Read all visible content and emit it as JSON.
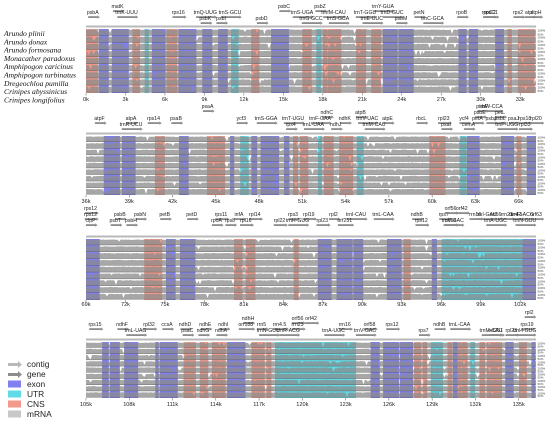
{
  "species": [
    "Arundo plinii",
    "Arundo donax",
    "Arundo formosana",
    "Monacather paradoxus",
    "Amphipogon caricinus",
    "Amphipogon turbinatus",
    "Dregeochloa pumilla",
    "Crinipes abyssinicus",
    "Crinipes longifolius"
  ],
  "legend": [
    {
      "label": "contig",
      "kind": "arrow",
      "color": "#b9b9b9"
    },
    {
      "label": "gene",
      "kind": "arrow",
      "color": "#8c8c8c"
    },
    {
      "label": "exon",
      "kind": "box",
      "color": "#8080ee"
    },
    {
      "label": "UTR",
      "kind": "box",
      "color": "#62d9e6"
    },
    {
      "label": "CNS",
      "kind": "box",
      "color": "#f19a8c"
    },
    {
      "label": "mRNA",
      "kind": "box",
      "color": "#c8c8c8"
    }
  ],
  "colors": {
    "exon": "#8080ee",
    "utr": "#62d9e6",
    "cns": "#f19a8c",
    "background": "#c8c8c8",
    "gene_arrow": "#8c8c8c"
  },
  "panels": [
    {
      "ticks": [
        "0k",
        "3k",
        "6k",
        "9k",
        "12k",
        "15k",
        "18k",
        "21k",
        "24k",
        "27k",
        "30k",
        "33k"
      ],
      "genes": [
        {
          "label": "matK",
          "pos": 0.07,
          "row": 0
        },
        {
          "label": "psbA",
          "pos": 0.015,
          "row": 1
        },
        {
          "label": "trnK-UUU",
          "pos": 0.09,
          "row": 1
        },
        {
          "label": "rps16",
          "pos": 0.205,
          "row": 1
        },
        {
          "label": "trnQ-UUG",
          "pos": 0.265,
          "row": 1
        },
        {
          "label": "trnS-GCU",
          "pos": 0.32,
          "row": 1
        },
        {
          "label": "psbK",
          "pos": 0.265,
          "row": 2
        },
        {
          "label": "psbI",
          "pos": 0.3,
          "row": 2
        },
        {
          "label": "psbD",
          "pos": 0.39,
          "row": 2
        },
        {
          "label": "psbC",
          "pos": 0.44,
          "row": 0
        },
        {
          "label": "psbZ",
          "pos": 0.52,
          "row": 0
        },
        {
          "label": "trnY-GUA",
          "pos": 0.66,
          "row": 0
        },
        {
          "label": "trnS-UGA",
          "pos": 0.48,
          "row": 1
        },
        {
          "label": "trnfM-CAU",
          "pos": 0.55,
          "row": 1
        },
        {
          "label": "trnT-GGU",
          "pos": 0.62,
          "row": 1
        },
        {
          "label": "trnD-GUC",
          "pos": 0.68,
          "row": 1
        },
        {
          "label": "petN",
          "pos": 0.74,
          "row": 1
        },
        {
          "label": "trnG-GCC",
          "pos": 0.5,
          "row": 2
        },
        {
          "label": "trnS-GCA",
          "pos": 0.56,
          "row": 2
        },
        {
          "label": "trnE-UUC",
          "pos": 0.635,
          "row": 2
        },
        {
          "label": "psbM",
          "pos": 0.7,
          "row": 2
        },
        {
          "label": "trnC-GCA",
          "pos": 0.77,
          "row": 2
        },
        {
          "label": "rpoB",
          "pos": 0.835,
          "row": 1
        },
        {
          "label": "rpoC1",
          "pos": 0.9,
          "row": 1
        },
        {
          "label": "rpoC2",
          "pos": 0.895,
          "row": 1
        },
        {
          "label": "rps2",
          "pos": 0.96,
          "row": 1
        },
        {
          "label": "atpI",
          "pos": 0.985,
          "row": 1
        },
        {
          "label": "atpH",
          "pos": 1.0,
          "row": 1
        }
      ]
    },
    {
      "ticks": [
        "36k",
        "39k",
        "42k",
        "45k",
        "48k",
        "51k",
        "54k",
        "57k",
        "60k",
        "63k",
        "66k"
      ],
      "genes": [
        {
          "label": "psaA",
          "pos": 0.27,
          "row": 0
        },
        {
          "label": "psbF",
          "pos": 0.88,
          "row": 0
        },
        {
          "label": "trnW-CCA",
          "pos": 0.9,
          "row": 0
        },
        {
          "label": "ndhC",
          "pos": 0.535,
          "row": 1
        },
        {
          "label": "atpB",
          "pos": 0.61,
          "row": 1
        },
        {
          "label": "psbE",
          "pos": 0.875,
          "row": 1
        },
        {
          "label": "petL",
          "pos": 0.92,
          "row": 1
        },
        {
          "label": "atpF",
          "pos": 0.03,
          "row": 2
        },
        {
          "label": "atpA",
          "pos": 0.1,
          "row": 2
        },
        {
          "label": "rps14",
          "pos": 0.15,
          "row": 2
        },
        {
          "label": "psaB",
          "pos": 0.2,
          "row": 2
        },
        {
          "label": "ycf3",
          "pos": 0.345,
          "row": 2
        },
        {
          "label": "trnS-GGA",
          "pos": 0.4,
          "row": 2
        },
        {
          "label": "trnT-UGU",
          "pos": 0.46,
          "row": 2
        },
        {
          "label": "trnF-GAA",
          "pos": 0.52,
          "row": 2
        },
        {
          "label": "ndhK",
          "pos": 0.575,
          "row": 2
        },
        {
          "label": "trnV-UAC",
          "pos": 0.625,
          "row": 2
        },
        {
          "label": "atpE",
          "pos": 0.67,
          "row": 2
        },
        {
          "label": "rbcL",
          "pos": 0.745,
          "row": 2
        },
        {
          "label": "rpl23",
          "pos": 0.795,
          "row": 2
        },
        {
          "label": "ycf4",
          "pos": 0.84,
          "row": 2
        },
        {
          "label": "petA",
          "pos": 0.87,
          "row": 2
        },
        {
          "label": "psbJ",
          "pos": 0.9,
          "row": 2
        },
        {
          "label": "psbL",
          "pos": 0.92,
          "row": 2
        },
        {
          "label": "psaJ",
          "pos": 0.95,
          "row": 2
        },
        {
          "label": "rps18",
          "pos": 0.975,
          "row": 2
        },
        {
          "label": "rpl20",
          "pos": 1.0,
          "row": 2
        },
        {
          "label": "trnR-UCU",
          "pos": 0.1,
          "row": 3
        },
        {
          "label": "rps4",
          "pos": 0.455,
          "row": 3
        },
        {
          "label": "trnL-UAA",
          "pos": 0.505,
          "row": 3
        },
        {
          "label": "ndhJ",
          "pos": 0.555,
          "row": 3
        },
        {
          "label": "trnM-CAU",
          "pos": 0.64,
          "row": 3
        },
        {
          "label": "psaI",
          "pos": 0.8,
          "row": 3
        },
        {
          "label": "cemA",
          "pos": 0.85,
          "row": 3
        },
        {
          "label": "trnP-UGG",
          "pos": 0.935,
          "row": 3
        },
        {
          "label": "rpl33",
          "pos": 0.975,
          "row": 3
        }
      ]
    },
    {
      "ticks": [
        "69k",
        "72k",
        "75k",
        "78k",
        "81k",
        "84k",
        "87k",
        "90k",
        "93k",
        "96k",
        "99k",
        "102k"
      ],
      "genes": [
        {
          "label": "rps12",
          "pos": 0.01,
          "row": 0
        },
        {
          "label": "rps12",
          "pos": 0.01,
          "row": 1
        },
        {
          "label": "psbB",
          "pos": 0.075,
          "row": 1
        },
        {
          "label": "psbN",
          "pos": 0.12,
          "row": 1
        },
        {
          "label": "petB",
          "pos": 0.175,
          "row": 1
        },
        {
          "label": "petD",
          "pos": 0.235,
          "row": 1
        },
        {
          "label": "rps11",
          "pos": 0.3,
          "row": 1
        },
        {
          "label": "infA",
          "pos": 0.34,
          "row": 1
        },
        {
          "label": "rpl14",
          "pos": 0.375,
          "row": 1
        },
        {
          "label": "rps3",
          "pos": 0.46,
          "row": 1
        },
        {
          "label": "rpl19",
          "pos": 0.495,
          "row": 1
        },
        {
          "label": "rpl2",
          "pos": 0.55,
          "row": 1
        },
        {
          "label": "trnI-CAU",
          "pos": 0.6,
          "row": 1
        },
        {
          "label": "trnL-CAA",
          "pos": 0.66,
          "row": 1
        },
        {
          "label": "ndhB",
          "pos": 0.735,
          "row": 1
        },
        {
          "label": "rps7",
          "pos": 0.795,
          "row": 1
        },
        {
          "label": "orf56",
          "pos": 0.81,
          "row": 0
        },
        {
          "label": "orf42",
          "pos": 0.835,
          "row": 0
        },
        {
          "label": "rrn16",
          "pos": 0.865,
          "row": 1
        },
        {
          "label": "trnI-GAU",
          "pos": 0.89,
          "row": 1
        },
        {
          "label": "orf56",
          "pos": 0.91,
          "row": 1
        },
        {
          "label": "rrn23",
          "pos": 0.935,
          "row": 1
        },
        {
          "label": "rrn4.5",
          "pos": 0.955,
          "row": 1
        },
        {
          "label": "trnR-ACG",
          "pos": 0.97,
          "row": 1
        },
        {
          "label": "orf63",
          "pos": 1.0,
          "row": 1
        },
        {
          "label": "clpP",
          "pos": 0.01,
          "row": 2
        },
        {
          "label": "psbT",
          "pos": 0.065,
          "row": 2
        },
        {
          "label": "psbH",
          "pos": 0.1,
          "row": 2
        },
        {
          "label": "rpoA",
          "pos": 0.29,
          "row": 2
        },
        {
          "label": "rps8",
          "pos": 0.32,
          "row": 2
        },
        {
          "label": "rpl16",
          "pos": 0.355,
          "row": 2
        },
        {
          "label": "rpl22",
          "pos": 0.43,
          "row": 2
        },
        {
          "label": "trnH-GUG",
          "pos": 0.47,
          "row": 2
        },
        {
          "label": "rpl23",
          "pos": 0.525,
          "row": 2
        },
        {
          "label": "orf251",
          "pos": 0.575,
          "row": 2
        },
        {
          "label": "rps12",
          "pos": 0.745,
          "row": 2
        },
        {
          "label": "orf58",
          "pos": 0.81,
          "row": 2
        },
        {
          "label": "trnV-GAC",
          "pos": 0.815,
          "row": 2
        },
        {
          "label": "trnA-UGC",
          "pos": 0.91,
          "row": 2
        },
        {
          "label": "trnN-GUU",
          "pos": 0.975,
          "row": 2
        }
      ]
    },
    {
      "ticks": [
        "105k",
        "108k",
        "111k",
        "114k",
        "117k",
        "120k",
        "123k",
        "126k",
        "129k",
        "132k",
        "135k"
      ],
      "genes": [
        {
          "label": "rpl2",
          "pos": 0.985,
          "row": 0
        },
        {
          "label": "ndhH",
          "pos": 0.36,
          "row": 1
        },
        {
          "label": "orf56",
          "pos": 0.47,
          "row": 1
        },
        {
          "label": "orf42",
          "pos": 0.5,
          "row": 1
        },
        {
          "label": "rps15",
          "pos": 0.02,
          "row": 2
        },
        {
          "label": "ndhF",
          "pos": 0.08,
          "row": 2
        },
        {
          "label": "rpl32",
          "pos": 0.14,
          "row": 2
        },
        {
          "label": "ccsA",
          "pos": 0.18,
          "row": 2
        },
        {
          "label": "ndhD",
          "pos": 0.22,
          "row": 2
        },
        {
          "label": "ndhE",
          "pos": 0.265,
          "row": 2
        },
        {
          "label": "ndhI",
          "pos": 0.305,
          "row": 2
        },
        {
          "label": "orf188",
          "pos": 0.355,
          "row": 2
        },
        {
          "label": "rrn5",
          "pos": 0.39,
          "row": 2
        },
        {
          "label": "rrn4.5",
          "pos": 0.43,
          "row": 2
        },
        {
          "label": "rrn23",
          "pos": 0.47,
          "row": 2
        },
        {
          "label": "rrn16",
          "pos": 0.575,
          "row": 2
        },
        {
          "label": "orf58",
          "pos": 0.63,
          "row": 2
        },
        {
          "label": "rps12",
          "pos": 0.68,
          "row": 2
        },
        {
          "label": "ndhB",
          "pos": 0.785,
          "row": 2
        },
        {
          "label": "trnL-CAA",
          "pos": 0.83,
          "row": 2
        },
        {
          "label": "rps19",
          "pos": 0.98,
          "row": 2
        },
        {
          "label": "trnL-UAG",
          "pos": 0.11,
          "row": 3
        },
        {
          "label": "psaC",
          "pos": 0.225,
          "row": 3
        },
        {
          "label": "ndhA",
          "pos": 0.3,
          "row": 3
        },
        {
          "label": "ndhG",
          "pos": 0.26,
          "row": 3
        },
        {
          "label": "trnN-GUU",
          "pos": 0.405,
          "row": 3
        },
        {
          "label": "trnR-ACG",
          "pos": 0.45,
          "row": 3
        },
        {
          "label": "trnA-UGC",
          "pos": 0.55,
          "row": 3
        },
        {
          "label": "trnV-GAC",
          "pos": 0.62,
          "row": 3
        },
        {
          "label": "rps7",
          "pos": 0.75,
          "row": 3
        },
        {
          "label": "trnM-CAU",
          "pos": 0.9,
          "row": 3
        },
        {
          "label": "trnH-GUG",
          "pos": 0.975,
          "row": 3
        },
        {
          "label": "orf251",
          "pos": 0.91,
          "row": 3
        },
        {
          "label": "rpl23",
          "pos": 0.945,
          "row": 3
        }
      ]
    }
  ]
}
